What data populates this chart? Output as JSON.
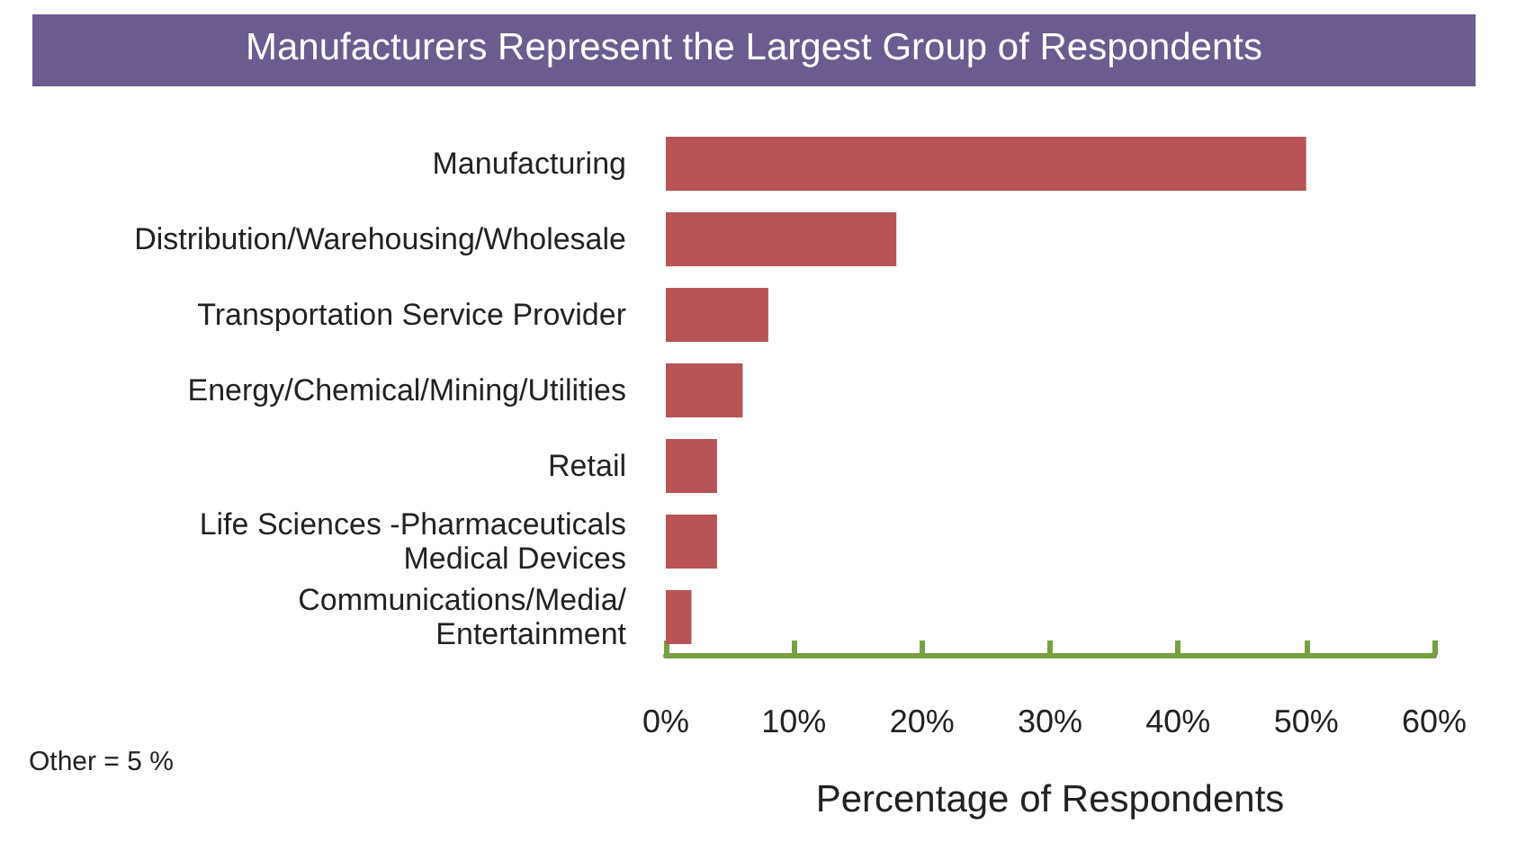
{
  "chart_data": {
    "type": "bar",
    "orientation": "horizontal",
    "title": "Manufacturers Represent the Largest Group of Respondents",
    "xlabel": "Percentage of Respondents",
    "categories": [
      "Manufacturing",
      "Distribution/Warehousing/Wholesale",
      "Transportation Service Provider",
      "Energy/Chemical/Mining/Utilities",
      "Retail",
      "Life Sciences -Pharmaceuticals\nMedical Devices",
      "Communications/Media/\nEntertainment"
    ],
    "values": [
      50,
      18,
      8,
      6,
      4,
      4,
      2
    ],
    "color": "#b85457",
    "xlim": [
      0,
      60
    ],
    "xticks": [
      {
        "value": 0,
        "label": "0%"
      },
      {
        "value": 10,
        "label": "10%"
      },
      {
        "value": 20,
        "label": "20%"
      },
      {
        "value": 30,
        "label": "30%"
      },
      {
        "value": 40,
        "label": "40%"
      },
      {
        "value": 50,
        "label": "50%"
      },
      {
        "value": 60,
        "label": "60%"
      }
    ],
    "grid": false,
    "annotations": [
      "Other = 5 %"
    ]
  }
}
